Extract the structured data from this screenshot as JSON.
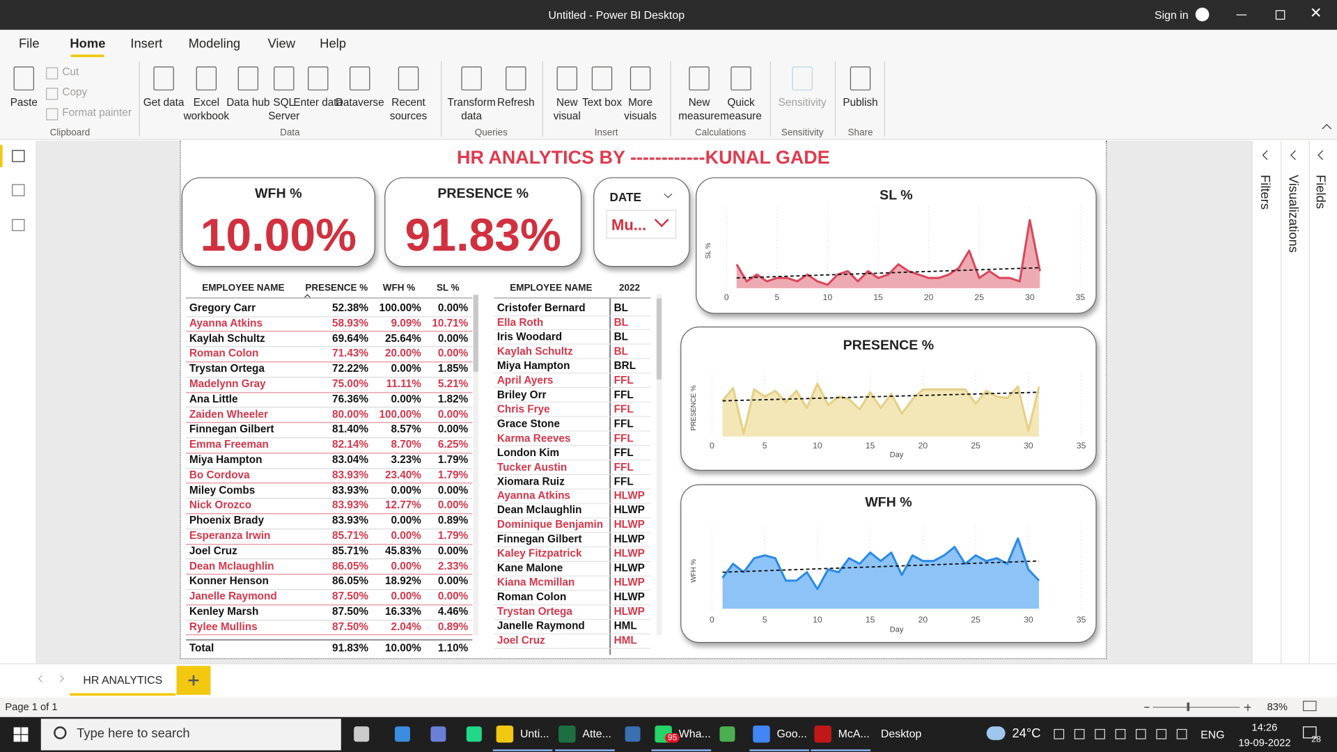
{
  "window": {
    "title": "Untitled - Power BI Desktop",
    "sign_in": "Sign in"
  },
  "menu": [
    "File",
    "Home",
    "Insert",
    "Modeling",
    "View",
    "Help"
  ],
  "ribbon": {
    "groups": [
      {
        "name": "Clipboard",
        "buttons": [
          "Paste"
        ],
        "small": [
          "Cut",
          "Copy",
          "Format painter"
        ]
      },
      {
        "name": "Data",
        "buttons": [
          "Get data",
          "Excel workbook",
          "Data hub",
          "SQL Server",
          "Enter data",
          "Dataverse",
          "Recent sources"
        ]
      },
      {
        "name": "Queries",
        "buttons": [
          "Transform data",
          "Refresh"
        ]
      },
      {
        "name": "Insert",
        "buttons": [
          "New visual",
          "Text box",
          "More visuals"
        ]
      },
      {
        "name": "Calculations",
        "buttons": [
          "New measure",
          "Quick measure"
        ]
      },
      {
        "name": "Sensitivity",
        "buttons": [
          "Sensitivity"
        ]
      },
      {
        "name": "Share",
        "buttons": [
          "Publish"
        ]
      }
    ]
  },
  "panes": [
    "Filters",
    "Visualizations",
    "Fields"
  ],
  "report": {
    "title": "HR ANALYTICS BY ------------KUNAL GADE",
    "cards": [
      {
        "label": "WFH %",
        "value": "10.00%"
      },
      {
        "label": "PRESENCE %",
        "value": "91.83%"
      }
    ],
    "slicer": {
      "label": "DATE",
      "value": "Mu..."
    },
    "table1": {
      "columns": [
        "EMPLOYEE NAME",
        "PRESENCE %",
        "WFH %",
        "SL %"
      ],
      "rows": [
        [
          "Gregory Carr",
          "52.38%",
          "100.00%",
          "0.00%"
        ],
        [
          "Ayanna Atkins",
          "58.93%",
          "9.09%",
          "10.71%"
        ],
        [
          "Kaylah Schultz",
          "69.64%",
          "25.64%",
          "0.00%"
        ],
        [
          "Roman Colon",
          "71.43%",
          "20.00%",
          "0.00%"
        ],
        [
          "Trystan Ortega",
          "72.22%",
          "0.00%",
          "1.85%"
        ],
        [
          "Madelynn Gray",
          "75.00%",
          "11.11%",
          "5.21%"
        ],
        [
          "Ana Little",
          "76.36%",
          "0.00%",
          "1.82%"
        ],
        [
          "Zaiden Wheeler",
          "80.00%",
          "100.00%",
          "0.00%"
        ],
        [
          "Finnegan Gilbert",
          "81.40%",
          "8.57%",
          "0.00%"
        ],
        [
          "Emma Freeman",
          "82.14%",
          "8.70%",
          "6.25%"
        ],
        [
          "Miya Hampton",
          "83.04%",
          "3.23%",
          "1.79%"
        ],
        [
          "Bo Cordova",
          "83.93%",
          "23.40%",
          "1.79%"
        ],
        [
          "Miley Combs",
          "83.93%",
          "0.00%",
          "0.00%"
        ],
        [
          "Nick Orozco",
          "83.93%",
          "12.77%",
          "0.00%"
        ],
        [
          "Phoenix Brady",
          "83.93%",
          "0.00%",
          "0.89%"
        ],
        [
          "Esperanza Irwin",
          "85.71%",
          "0.00%",
          "1.79%"
        ],
        [
          "Joel Cruz",
          "85.71%",
          "45.83%",
          "0.00%"
        ],
        [
          "Dean Mclaughlin",
          "86.05%",
          "0.00%",
          "2.33%"
        ],
        [
          "Konner Henson",
          "86.05%",
          "18.92%",
          "0.00%"
        ],
        [
          "Janelle Raymond",
          "87.50%",
          "0.00%",
          "0.00%"
        ],
        [
          "Kenley Marsh",
          "87.50%",
          "16.33%",
          "4.46%"
        ],
        [
          "Rylee Mullins",
          "87.50%",
          "2.04%",
          "0.89%"
        ]
      ],
      "total": [
        "Total",
        "91.83%",
        "10.00%",
        "1.10%"
      ]
    },
    "table2": {
      "columns": [
        "EMPLOYEE NAME",
        "2022"
      ],
      "rows": [
        [
          "Cristofer Bernard",
          "BL"
        ],
        [
          "Ella Roth",
          "BL"
        ],
        [
          "Iris Woodard",
          "BL"
        ],
        [
          "Kaylah Schultz",
          "BL"
        ],
        [
          "Miya Hampton",
          "BRL"
        ],
        [
          "April Ayers",
          "FFL"
        ],
        [
          "Briley Orr",
          "FFL"
        ],
        [
          "Chris Frye",
          "FFL"
        ],
        [
          "Grace Stone",
          "FFL"
        ],
        [
          "Karma Reeves",
          "FFL"
        ],
        [
          "London Kim",
          "FFL"
        ],
        [
          "Tucker Austin",
          "FFL"
        ],
        [
          "Xiomara Ruiz",
          "FFL"
        ],
        [
          "Ayanna Atkins",
          "HLWP"
        ],
        [
          "Dean Mclaughlin",
          "HLWP"
        ],
        [
          "Dominique Benjamin",
          "HLWP"
        ],
        [
          "Finnegan Gilbert",
          "HLWP"
        ],
        [
          "Kaley Fitzpatrick",
          "HLWP"
        ],
        [
          "Kane Malone",
          "HLWP"
        ],
        [
          "Kiana Mcmillan",
          "HLWP"
        ],
        [
          "Roman Colon",
          "HLWP"
        ],
        [
          "Trystan Ortega",
          "HLWP"
        ],
        [
          "Janelle Raymond",
          "HML"
        ],
        [
          "Joel Cruz",
          "HML"
        ]
      ]
    },
    "charts": [
      {
        "type": "area",
        "title": "SL %",
        "y_label": "SL %",
        "color": "#d9475a",
        "fill": "#eeaab3",
        "x": [
          1,
          2,
          3,
          4,
          5,
          6,
          7,
          8,
          9,
          10,
          11,
          12,
          13,
          14,
          15,
          16,
          17,
          18,
          19,
          20,
          21,
          22,
          23,
          24,
          25,
          26,
          27,
          28,
          29,
          30,
          31
        ],
        "values": [
          3.5,
          1,
          2,
          1,
          1.5,
          1.5,
          1,
          2,
          1,
          0.5,
          2,
          2.5,
          1,
          2.5,
          1.5,
          2,
          3.5,
          2.5,
          2,
          1.5,
          1.5,
          2,
          3,
          5.5,
          1.5,
          2.5,
          1.5,
          1.5,
          1,
          10,
          2.5
        ],
        "trend": [
          1.5,
          3
        ],
        "xlim": [
          0,
          35
        ],
        "xticks": [
          0,
          5,
          10,
          15,
          20,
          25,
          30,
          35
        ],
        "ylim": [
          0,
          11
        ]
      },
      {
        "type": "area",
        "title": "PRESENCE %",
        "y_label": "PRESENCE %",
        "x_label": "Day",
        "color": "#e6d083",
        "fill": "#f3e7b8",
        "x": [
          1,
          2,
          3,
          4,
          5,
          6,
          7,
          8,
          9,
          10,
          11,
          12,
          13,
          14,
          15,
          16,
          17,
          18,
          19,
          20,
          21,
          22,
          23,
          24,
          25,
          26,
          27,
          28,
          29,
          30,
          31
        ],
        "values": [
          85,
          94,
          62,
          93,
          88,
          92,
          84,
          92,
          80,
          97,
          82,
          88,
          86,
          79,
          91,
          80,
          90,
          76,
          86,
          93,
          93,
          93,
          93,
          93,
          83,
          92,
          88,
          87,
          95,
          64,
          95
        ],
        "trend": [
          85,
          91
        ],
        "xlim": [
          0,
          35
        ],
        "xticks": [
          0,
          5,
          10,
          15,
          20,
          25,
          30,
          35
        ],
        "ylim": [
          60,
          100
        ]
      },
      {
        "type": "area",
        "title": "WFH %",
        "y_label": "WFH %",
        "x_label": "Day",
        "color": "#2b8ae6",
        "fill": "#8ec3f7",
        "x": [
          1,
          2,
          3,
          4,
          5,
          6,
          7,
          8,
          9,
          10,
          11,
          12,
          13,
          14,
          15,
          16,
          17,
          18,
          19,
          20,
          21,
          22,
          23,
          24,
          25,
          26,
          27,
          28,
          29,
          30,
          31
        ],
        "values": [
          11,
          16,
          13,
          18,
          19,
          18,
          10,
          10,
          13,
          7,
          14,
          13,
          18,
          16,
          20,
          17,
          20,
          12,
          19,
          17,
          17,
          19,
          22,
          16,
          19,
          17,
          18,
          16,
          25,
          14,
          10
        ],
        "trend": [
          13,
          17
        ],
        "xlim": [
          0,
          35
        ],
        "xticks": [
          0,
          5,
          10,
          15,
          20,
          25,
          30,
          35
        ],
        "ylim": [
          0,
          27
        ]
      }
    ]
  },
  "page_tab": "HR ANALYTICS",
  "status": {
    "page": "Page 1 of 1",
    "zoom": "83%"
  },
  "taskbar": {
    "search": "Type here to search",
    "apps": [
      "Unti...",
      "Atte...",
      "Wha...",
      "Goo...",
      "McA..."
    ],
    "badge": "95",
    "desktop": "Desktop",
    "weather": "24°C",
    "lang": "ENG",
    "time": "14:26",
    "date": "19-09-2022",
    "notifications": "28"
  }
}
